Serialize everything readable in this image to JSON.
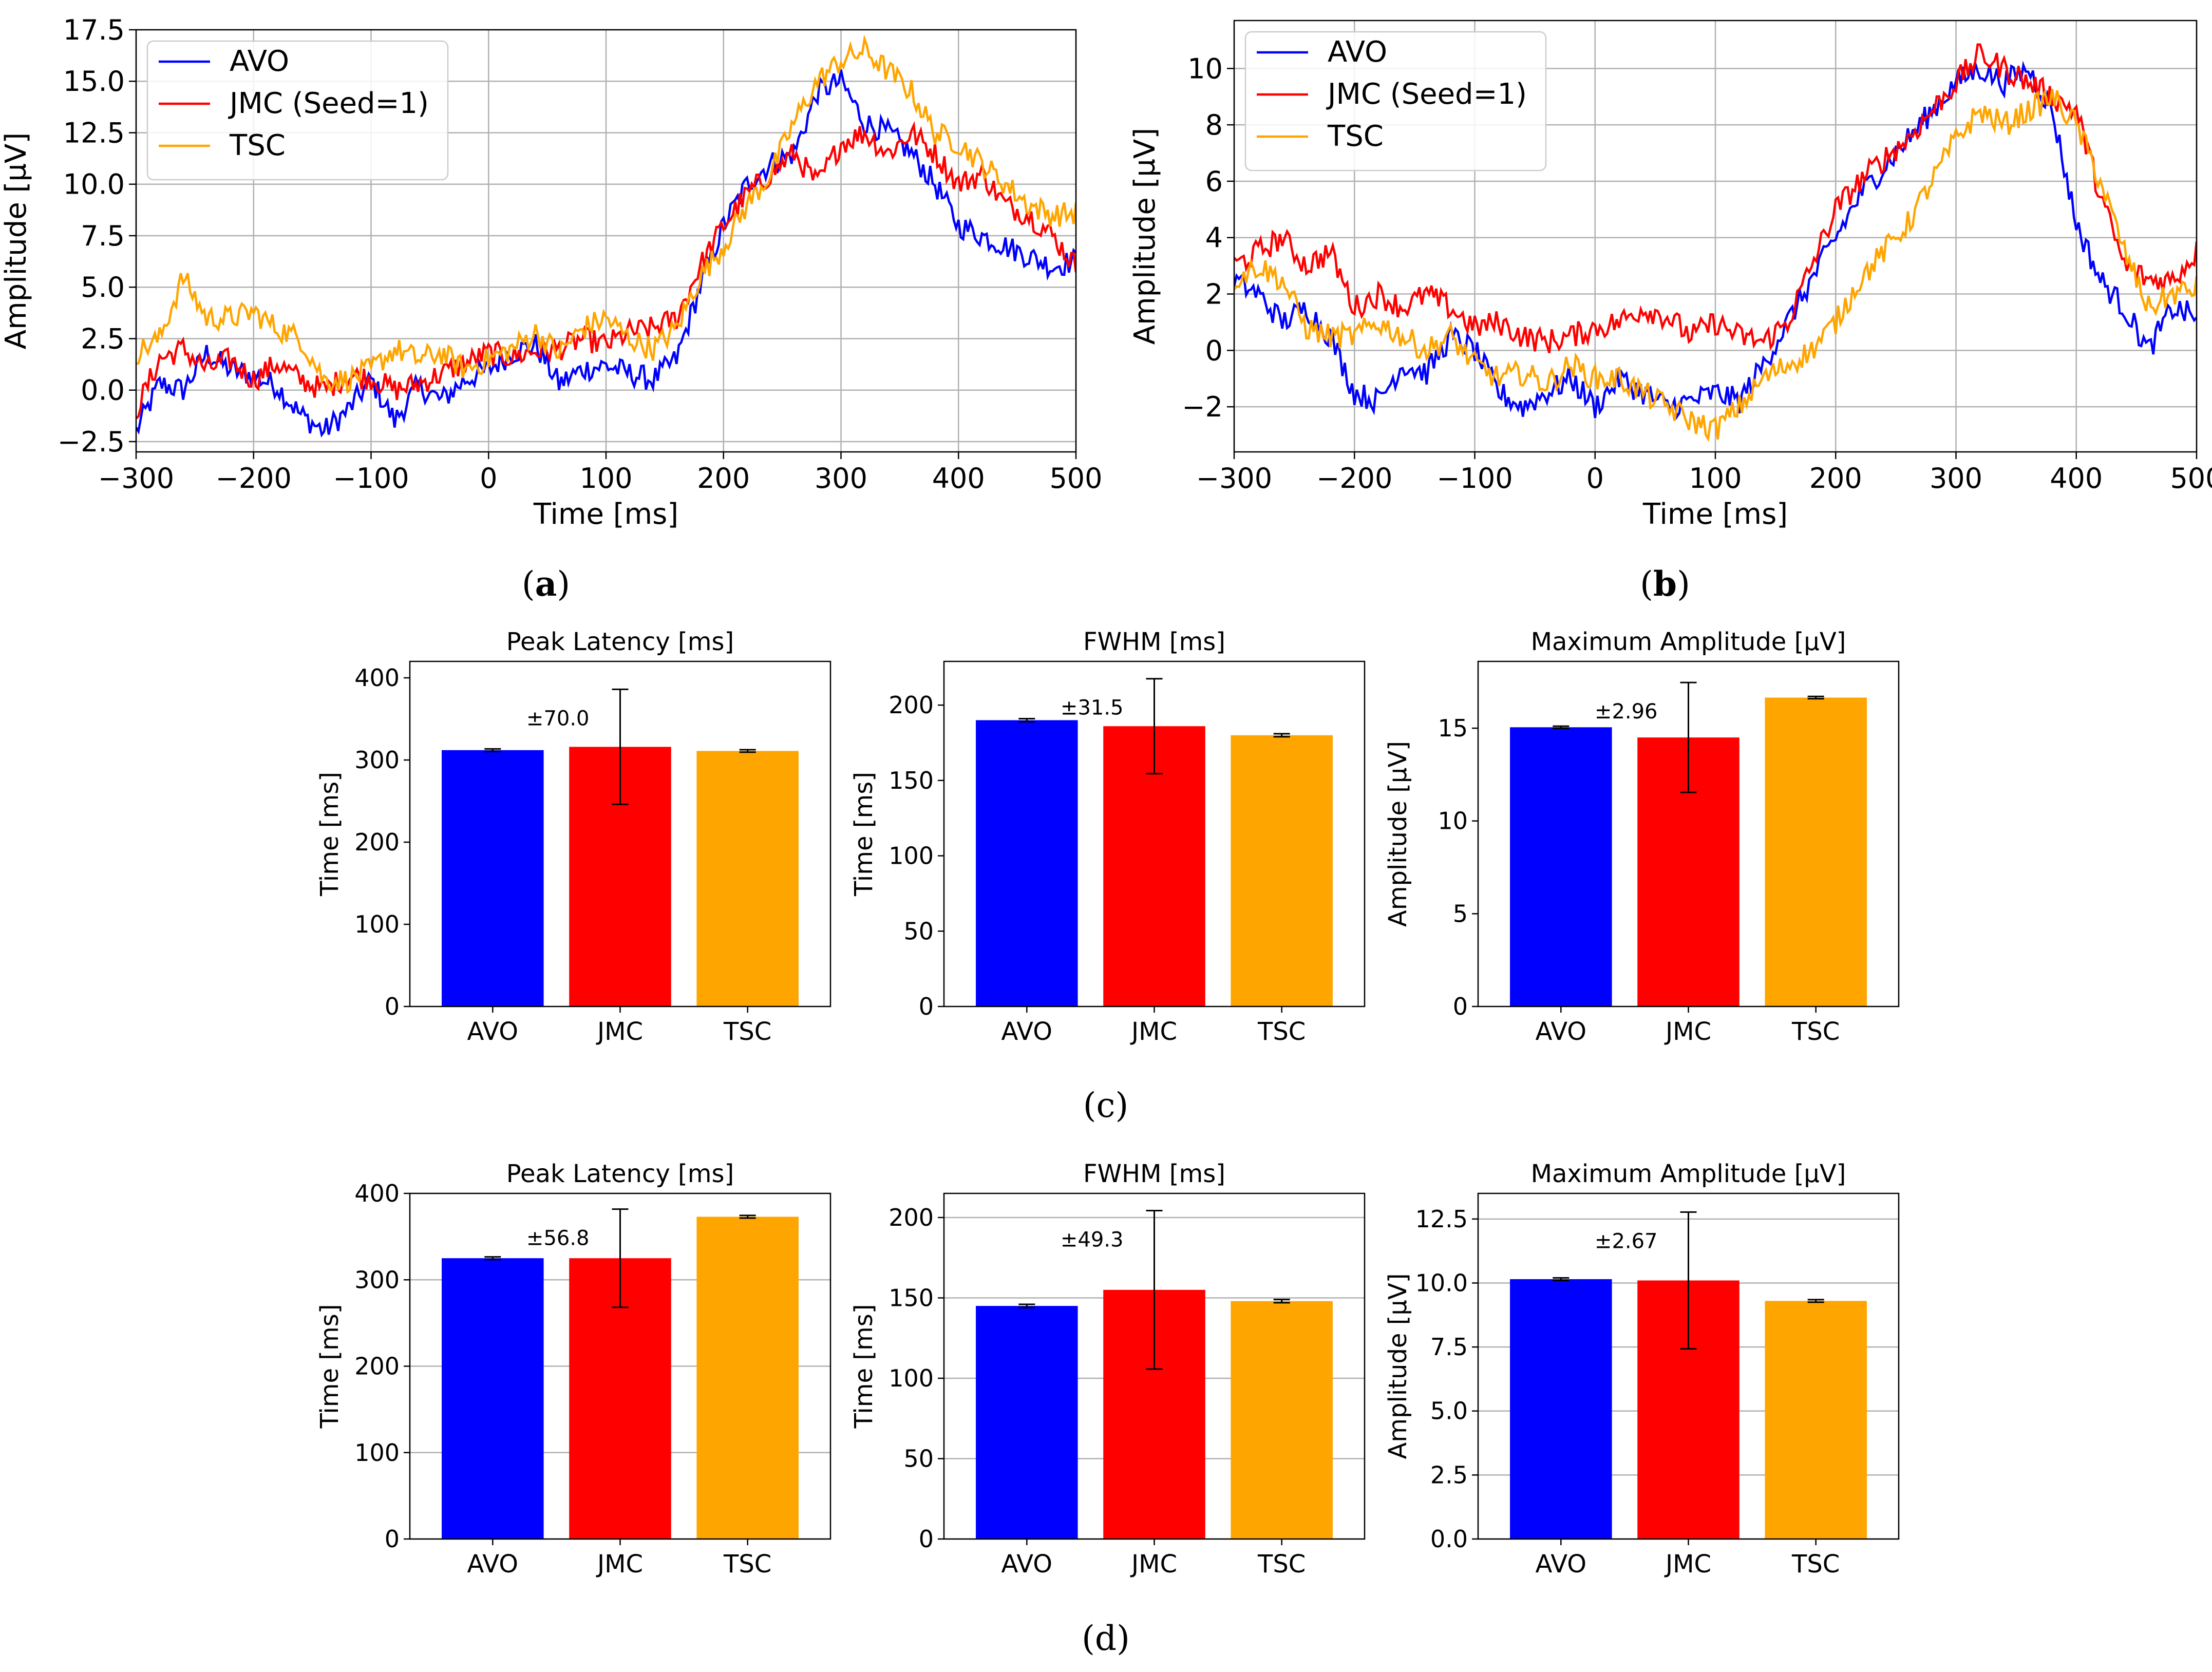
{
  "captions": {
    "a": "(a)",
    "b": "(b)",
    "c": "(c)",
    "d": "(d)"
  },
  "caption_bold": {
    "a": "a",
    "b": "b"
  },
  "colors": {
    "AVO": "#0000ff",
    "JMC": "#ff0000",
    "TSC": "#ffa500",
    "error_bar": "#000000",
    "grid": "#b0b0b0"
  },
  "chart_data": [
    {
      "panel": "a",
      "type": "line",
      "title": "",
      "xlabel": "Time [ms]",
      "ylabel": "Amplitude [µV]",
      "xlim": [
        -300,
        500
      ],
      "ylim": [
        -3,
        17.5
      ],
      "xticks": [
        -300,
        -200,
        -100,
        0,
        100,
        200,
        300,
        400,
        500
      ],
      "xtick_labels": [
        "−300",
        "−200",
        "−100",
        "0",
        "100",
        "200",
        "300",
        "400",
        "500"
      ],
      "yticks": [
        -2.5,
        0,
        2.5,
        5,
        7.5,
        10,
        12.5,
        15,
        17.5
      ],
      "ytick_labels": [
        "−2.5",
        "0.0",
        "2.5",
        "5.0",
        "7.5",
        "10.0",
        "12.5",
        "15.0",
        "17.5"
      ],
      "grid": true,
      "legend": {
        "placement": "top-left",
        "entries": [
          "AVO",
          "JMC (Seed=1)",
          "TSC"
        ]
      },
      "series": [
        {
          "name": "AVO",
          "color": "#0000ff",
          "x": [
            -300,
            -280,
            -260,
            -240,
            -220,
            -200,
            -180,
            -160,
            -140,
            -120,
            -100,
            -80,
            -60,
            -40,
            -20,
            0,
            20,
            40,
            60,
            80,
            100,
            120,
            140,
            160,
            180,
            200,
            220,
            240,
            260,
            280,
            300,
            320,
            340,
            360,
            380,
            400,
            420,
            440,
            460,
            480,
            500
          ],
          "y": [
            -2.0,
            0.3,
            0.0,
            1.8,
            1.0,
            0.7,
            0.2,
            -1.2,
            -2.0,
            -1.0,
            0.5,
            -1.5,
            0.2,
            -0.5,
            0.5,
            1.0,
            1.8,
            2.2,
            0.3,
            1.0,
            1.2,
            0.8,
            0.5,
            1.5,
            5.0,
            8.0,
            10.0,
            11.0,
            11.5,
            14.5,
            15.0,
            13.0,
            12.5,
            11.5,
            10.0,
            8.0,
            7.5,
            7.0,
            6.5,
            6.0,
            6.3
          ],
          "noise": 0.6
        },
        {
          "name": "JMC (Seed=1)",
          "color": "#ff0000",
          "x": [
            -300,
            -280,
            -260,
            -240,
            -220,
            -200,
            -180,
            -160,
            -140,
            -120,
            -100,
            -80,
            -60,
            -40,
            -20,
            0,
            20,
            40,
            60,
            80,
            100,
            120,
            140,
            160,
            180,
            200,
            220,
            240,
            260,
            280,
            300,
            320,
            340,
            360,
            380,
            400,
            420,
            440,
            460,
            480,
            500
          ],
          "y": [
            -1.0,
            1.5,
            2.0,
            1.0,
            1.5,
            0.5,
            1.3,
            0.5,
            0.0,
            0.7,
            0.6,
            0.0,
            0.3,
            0.8,
            1.3,
            1.8,
            1.6,
            1.9,
            2.0,
            2.5,
            2.2,
            2.8,
            3.0,
            3.5,
            6.0,
            8.0,
            9.5,
            10.5,
            11.5,
            10.0,
            12.0,
            12.5,
            11.5,
            12.5,
            11.5,
            10.0,
            10.5,
            9.0,
            8.5,
            7.5,
            6.0
          ],
          "noise": 0.6
        },
        {
          "name": "TSC",
          "color": "#ffa500",
          "x": [
            -300,
            -280,
            -260,
            -240,
            -220,
            -200,
            -180,
            -160,
            -140,
            -120,
            -100,
            -80,
            -60,
            -40,
            -20,
            0,
            20,
            40,
            60,
            80,
            100,
            120,
            140,
            160,
            180,
            200,
            220,
            240,
            260,
            280,
            300,
            320,
            340,
            360,
            380,
            400,
            420,
            440,
            460,
            480,
            500
          ],
          "y": [
            1.8,
            2.5,
            5.5,
            3.5,
            3.5,
            3.8,
            3.0,
            2.5,
            0.5,
            0.5,
            1.0,
            2.0,
            1.5,
            1.8,
            1.0,
            1.5,
            2.0,
            2.8,
            1.8,
            3.0,
            3.5,
            2.5,
            2.0,
            3.0,
            5.5,
            7.0,
            9.0,
            10.5,
            13.0,
            15.0,
            16.0,
            16.5,
            15.5,
            14.5,
            12.5,
            12.0,
            11.0,
            10.0,
            9.0,
            8.5,
            8.6
          ],
          "noise": 0.6
        }
      ]
    },
    {
      "panel": "b",
      "type": "line",
      "title": "",
      "xlabel": "Time [ms]",
      "ylabel": "Amplitude [µV]",
      "xlim": [
        -300,
        500
      ],
      "ylim": [
        -3.6,
        11.7
      ],
      "xticks": [
        -300,
        -200,
        -100,
        0,
        100,
        200,
        300,
        400,
        500
      ],
      "xtick_labels": [
        "−300",
        "−200",
        "−100",
        "0",
        "100",
        "200",
        "300",
        "400",
        "500"
      ],
      "yticks": [
        -2,
        0,
        2,
        4,
        6,
        8,
        10
      ],
      "ytick_labels": [
        "−2",
        "0",
        "2",
        "4",
        "6",
        "8",
        "10"
      ],
      "grid": true,
      "legend": {
        "placement": "top-left",
        "entries": [
          "AVO",
          "JMC (Seed=1)",
          "TSC"
        ]
      },
      "series": [
        {
          "name": "AVO",
          "color": "#0000ff",
          "x": [
            -300,
            -280,
            -260,
            -240,
            -220,
            -200,
            -180,
            -160,
            -140,
            -120,
            -100,
            -80,
            -60,
            -40,
            -20,
            0,
            20,
            40,
            60,
            80,
            100,
            120,
            140,
            160,
            180,
            200,
            220,
            240,
            260,
            280,
            300,
            320,
            340,
            360,
            380,
            400,
            420,
            440,
            460,
            480,
            500
          ],
          "y": [
            2.5,
            2.0,
            1.0,
            1.5,
            0.5,
            -1.5,
            -1.8,
            -0.5,
            -0.8,
            0.5,
            0.0,
            -1.5,
            -2.0,
            -1.5,
            -1.0,
            -2.0,
            -1.0,
            -1.5,
            -2.0,
            -1.8,
            -1.5,
            -1.8,
            -0.5,
            1.0,
            2.5,
            4.0,
            5.5,
            6.5,
            7.5,
            8.5,
            9.5,
            10.0,
            9.5,
            10.0,
            8.5,
            4.5,
            2.5,
            1.5,
            0.0,
            1.5,
            1.2
          ],
          "noise": 0.45
        },
        {
          "name": "JMC (Seed=1)",
          "color": "#ff0000",
          "x": [
            -300,
            -280,
            -260,
            -240,
            -220,
            -200,
            -180,
            -160,
            -140,
            -120,
            -100,
            -80,
            -60,
            -40,
            -20,
            0,
            20,
            40,
            60,
            80,
            100,
            120,
            140,
            160,
            180,
            200,
            220,
            240,
            260,
            280,
            300,
            320,
            340,
            360,
            380,
            400,
            420,
            440,
            460,
            480,
            500
          ],
          "y": [
            3.0,
            3.5,
            4.0,
            3.0,
            3.5,
            1.5,
            2.0,
            1.5,
            2.0,
            1.5,
            0.8,
            1.0,
            0.5,
            0.3,
            0.5,
            0.8,
            1.0,
            1.5,
            1.2,
            0.5,
            1.0,
            0.5,
            0.3,
            1.0,
            3.0,
            5.0,
            6.0,
            6.8,
            7.5,
            8.5,
            9.5,
            10.5,
            10.0,
            9.5,
            9.0,
            8.5,
            5.5,
            3.0,
            2.5,
            2.5,
            3.5
          ],
          "noise": 0.45
        },
        {
          "name": "TSC",
          "color": "#ffa500",
          "x": [
            -300,
            -280,
            -260,
            -240,
            -220,
            -200,
            -180,
            -160,
            -140,
            -120,
            -100,
            -80,
            -60,
            -40,
            -20,
            0,
            20,
            40,
            60,
            80,
            100,
            120,
            140,
            160,
            180,
            200,
            220,
            240,
            260,
            280,
            300,
            320,
            340,
            360,
            380,
            400,
            420,
            440,
            460,
            480,
            500
          ],
          "y": [
            2.5,
            3.0,
            2.5,
            0.8,
            0.5,
            0.5,
            1.0,
            0.5,
            0.0,
            0.5,
            -0.5,
            -1.0,
            -0.8,
            -1.2,
            -0.5,
            -1.0,
            -1.0,
            -1.5,
            -2.0,
            -2.5,
            -2.8,
            -2.0,
            -1.0,
            -0.5,
            0.0,
            1.0,
            2.5,
            3.5,
            4.5,
            6.0,
            7.5,
            8.5,
            8.0,
            8.5,
            9.0,
            8.0,
            6.0,
            3.5,
            1.5,
            2.0,
            2.2
          ],
          "noise": 0.45
        }
      ]
    },
    {
      "panel": "c",
      "type": "bar",
      "title": "Peak Latency [ms]",
      "xlabel": "",
      "ylabel": "Time [ms]",
      "categories": [
        "AVO",
        "JMC",
        "TSC"
      ],
      "values": [
        312,
        316,
        311
      ],
      "errors": [
        1.5,
        70.0,
        1.5
      ],
      "error_label": "±70.0",
      "ylim": [
        0,
        420
      ],
      "yticks": [
        0,
        100,
        200,
        300,
        400
      ],
      "ytick_labels": [
        "0",
        "100",
        "200",
        "300",
        "400"
      ],
      "grid": false
    },
    {
      "panel": "c",
      "type": "bar",
      "title": "FWHM [ms]",
      "xlabel": "",
      "ylabel": "Time [ms]",
      "categories": [
        "AVO",
        "JMC",
        "TSC"
      ],
      "values": [
        190,
        186,
        180
      ],
      "errors": [
        1.0,
        31.5,
        1.0
      ],
      "error_label": "±31.5",
      "ylim": [
        0,
        229
      ],
      "yticks": [
        0,
        50,
        100,
        150,
        200
      ],
      "ytick_labels": [
        "0",
        "50",
        "100",
        "150",
        "200"
      ],
      "grid": false
    },
    {
      "panel": "c",
      "type": "bar",
      "title": "Maximum Amplitude [µV]",
      "xlabel": "",
      "ylabel": "Amplitude [µV]",
      "categories": [
        "AVO",
        "JMC",
        "TSC"
      ],
      "values": [
        15.05,
        14.5,
        16.65
      ],
      "errors": [
        0.06,
        2.96,
        0.06
      ],
      "error_label": "±2.96",
      "ylim": [
        0,
        18.6
      ],
      "yticks": [
        0,
        5,
        10,
        15
      ],
      "ytick_labels": [
        "0",
        "5",
        "10",
        "15"
      ],
      "grid": false
    },
    {
      "panel": "d",
      "type": "bar",
      "title": "Peak Latency [ms]",
      "xlabel": "",
      "ylabel": "Time [ms]",
      "categories": [
        "AVO",
        "JMC",
        "TSC"
      ],
      "values": [
        325,
        325,
        373
      ],
      "errors": [
        1.5,
        56.8,
        1.5
      ],
      "error_label": "±56.8",
      "ylim": [
        0,
        400
      ],
      "yticks": [
        0,
        100,
        200,
        300,
        400
      ],
      "ytick_labels": [
        "0",
        "100",
        "200",
        "300",
        "400"
      ],
      "grid": true
    },
    {
      "panel": "d",
      "type": "bar",
      "title": "FWHM [ms]",
      "xlabel": "",
      "ylabel": "Time [ms]",
      "categories": [
        "AVO",
        "JMC",
        "TSC"
      ],
      "values": [
        145,
        155,
        148
      ],
      "errors": [
        1.0,
        49.3,
        1.0
      ],
      "error_label": "±49.3",
      "ylim": [
        0,
        215
      ],
      "yticks": [
        0,
        50,
        100,
        150,
        200
      ],
      "ytick_labels": [
        "0",
        "50",
        "100",
        "150",
        "200"
      ],
      "grid": true
    },
    {
      "panel": "d",
      "type": "bar",
      "title": "Maximum Amplitude [µV]",
      "xlabel": "",
      "ylabel": "Amplitude [µV]",
      "categories": [
        "AVO",
        "JMC",
        "TSC"
      ],
      "values": [
        10.15,
        10.1,
        9.3
      ],
      "errors": [
        0.05,
        2.67,
        0.05
      ],
      "error_label": "±2.67",
      "ylim": [
        0,
        13.5
      ],
      "yticks": [
        0,
        2.5,
        5,
        7.5,
        10,
        12.5
      ],
      "ytick_labels": [
        "0.0",
        "2.5",
        "5.0",
        "7.5",
        "10.0",
        "12.5"
      ],
      "grid": true
    }
  ]
}
